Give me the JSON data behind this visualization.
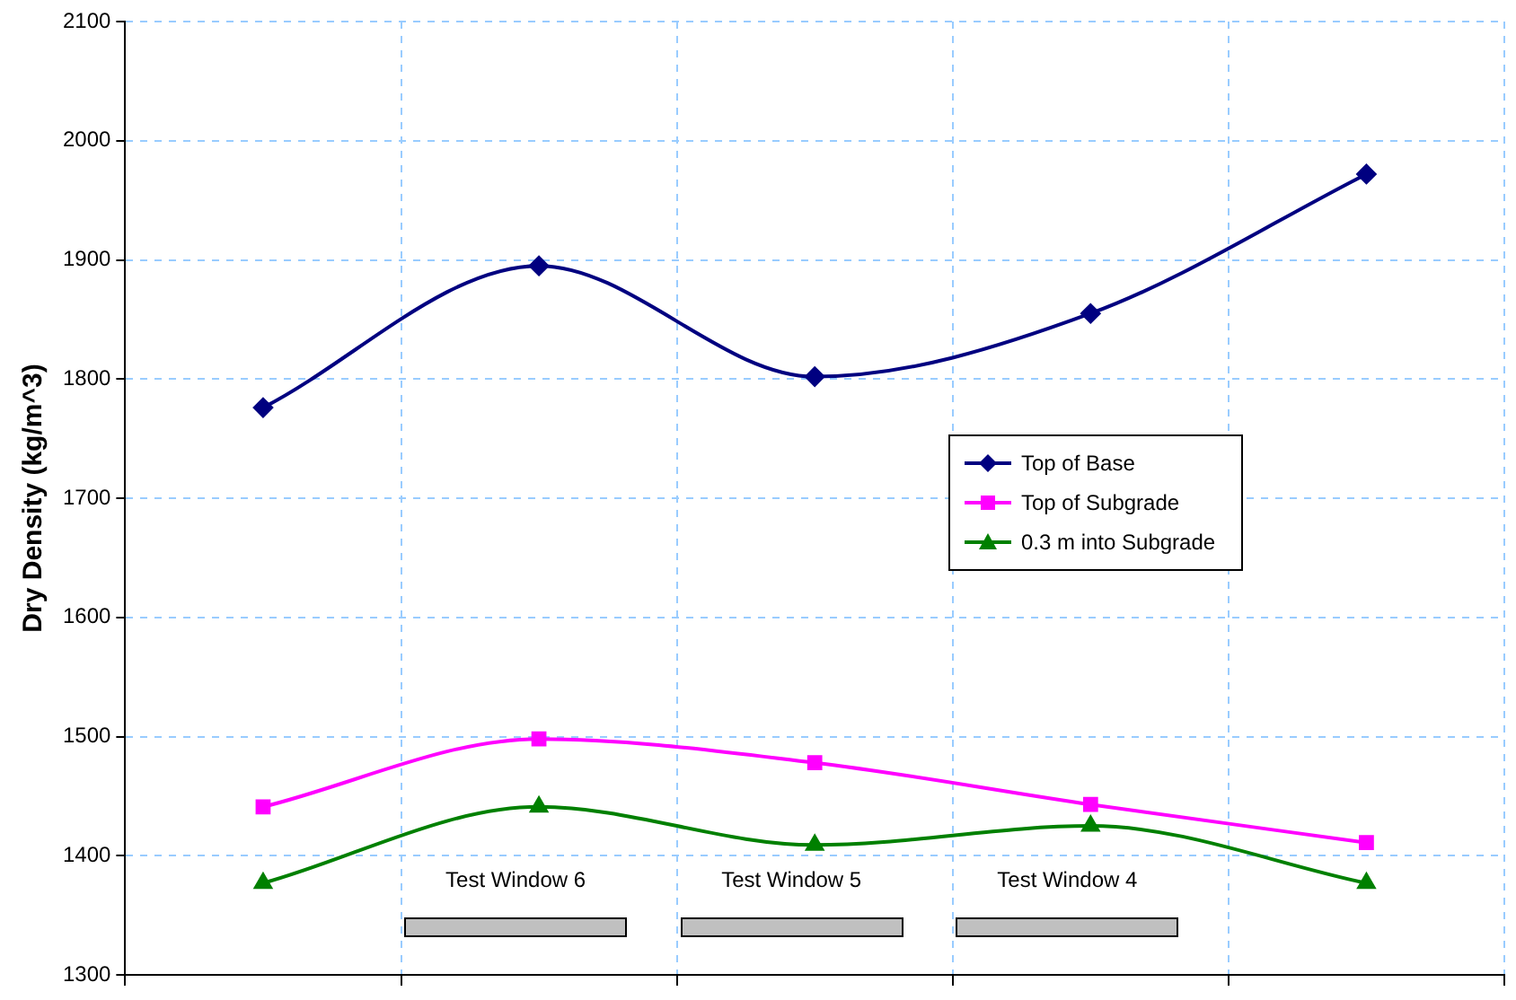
{
  "chart_data": {
    "type": "line",
    "ylabel": "Dry Density (kg/m^3)",
    "categories": [
      null,
      null,
      null,
      null,
      null
    ],
    "ylim": [
      1300,
      2100
    ],
    "yticks": [
      1300,
      1400,
      1500,
      1600,
      1700,
      1800,
      1900,
      2000,
      2100
    ],
    "grid": true,
    "legend": "right",
    "tick_labels": "y",
    "annotations": [
      "Test Window 6",
      "Test Window 5",
      "Test Window 4"
    ],
    "series": [
      {
        "name": "Top of Base",
        "color": "#000080",
        "marker": "diamond",
        "values": [
          1776,
          1895,
          1802,
          1855,
          1972
        ]
      },
      {
        "name": "Top of Subgrade",
        "color": "#ff00ff",
        "marker": "square",
        "values": [
          1441,
          1498,
          1478,
          1443,
          1411
        ]
      },
      {
        "name": "0.3 m into Subgrade",
        "color": "#008000",
        "marker": "triangle",
        "values": [
          1377,
          1441,
          1409,
          1425,
          1377
        ]
      }
    ]
  }
}
